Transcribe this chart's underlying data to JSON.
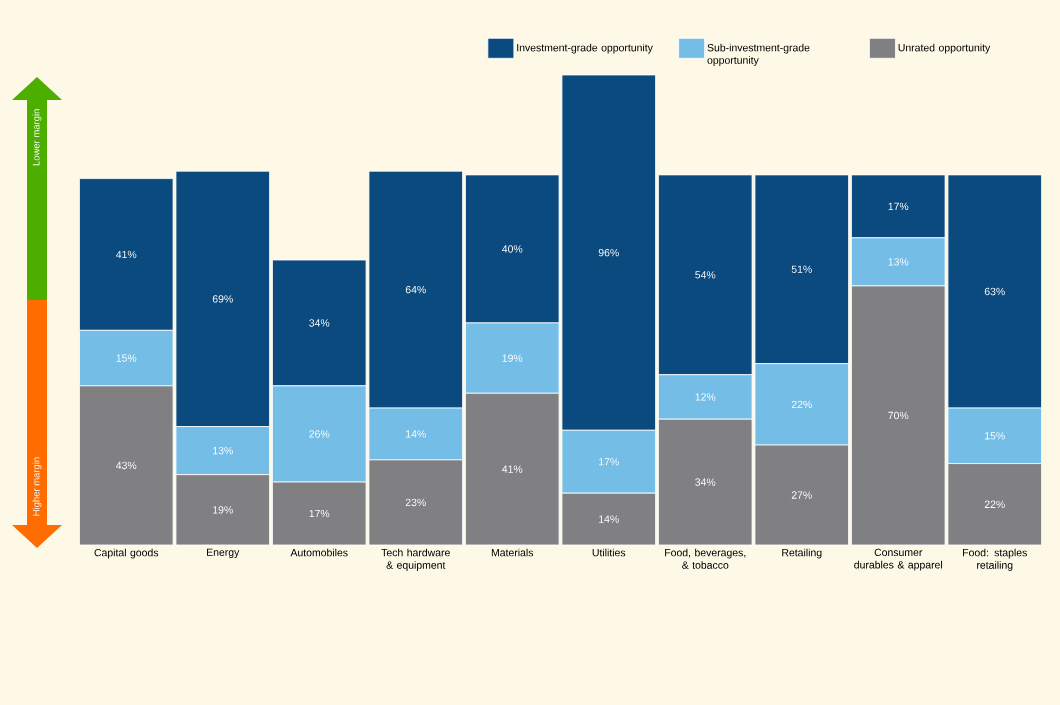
{
  "chart_data": {
    "type": "bar",
    "stacked": true,
    "categories": [
      "Capital goods",
      "Energy",
      "Automobiles",
      "Tech hardware & equipment",
      "Materials",
      "Utilities",
      "Food, beverages, & tobacco",
      "Retailing",
      "Consumer durables & apparel",
      "Food: staples retailing"
    ],
    "series": [
      {
        "name": "Unrated opportunity",
        "color": "#808083",
        "values": [
          43,
          19,
          17,
          23,
          41,
          14,
          34,
          27,
          70,
          22
        ],
        "value_labels": [
          "43%",
          "19%",
          "17%",
          "23%",
          "41%",
          "14%",
          "34%",
          "27%",
          "70%",
          "22%"
        ]
      },
      {
        "name": "Sub-investment-grade opportunity",
        "color": "#74bde6",
        "values": [
          15,
          13,
          26,
          14,
          19,
          17,
          12,
          22,
          13,
          15
        ],
        "value_labels": [
          "15%",
          "13%",
          "26%",
          "14%",
          "19%",
          "17%",
          "12%",
          "22%",
          "13%",
          "15%"
        ]
      },
      {
        "name": "Investment-grade opportunity",
        "color": "#0b4a7e",
        "values": [
          41,
          69,
          34,
          64,
          40,
          96,
          54,
          51,
          17,
          63
        ],
        "value_labels": [
          "41%",
          "69%",
          "34%",
          "64%",
          "40%",
          "96%",
          "54%",
          "51%",
          "17%",
          "63%"
        ]
      }
    ],
    "tick_labels": "x",
    "legend": "top right",
    "annotations": [
      "Lower margin",
      "Higher margin"
    ]
  }
}
